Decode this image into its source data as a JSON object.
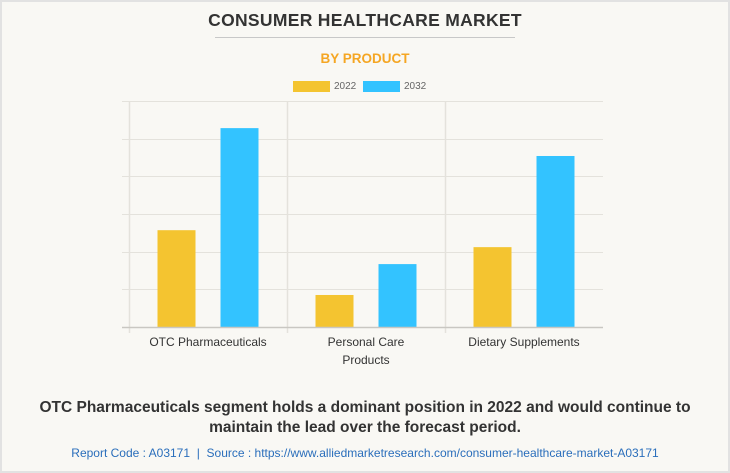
{
  "header": {
    "title": "CONSUMER HEALTHCARE MARKET",
    "subtitle": "BY PRODUCT"
  },
  "colors": {
    "series_2022": "#f4c430",
    "series_2032": "#33c3ff",
    "subtitle": "#f5a623",
    "footer_link": "#2a6ebb"
  },
  "chart_data": {
    "type": "bar",
    "title": "CONSUMER HEALTHCARE MARKET",
    "subtitle": "BY PRODUCT",
    "xlabel": "",
    "ylabel": "",
    "y_tick_labels_visible": false,
    "y_units": "relative (gridline intervals; no numeric axis shown)",
    "ylim": [
      0,
      6
    ],
    "grid": true,
    "legend_position": "top-center",
    "categories": [
      "OTC Pharmaceuticals",
      "Personal Care Products",
      "Dietary Supplements"
    ],
    "category_label_lines": [
      [
        "OTC Pharmaceuticals"
      ],
      [
        "Personal Care",
        "Products"
      ],
      [
        "Dietary Supplements"
      ]
    ],
    "series": [
      {
        "name": "2022",
        "color": "#f4c430",
        "values": [
          2.57,
          0.85,
          2.12
        ]
      },
      {
        "name": "2032",
        "color": "#33c3ff",
        "values": [
          5.28,
          1.67,
          4.54
        ]
      }
    ]
  },
  "caption": {
    "line1": "OTC Pharmaceuticals segment holds a dominant position in 2022 and would continue to",
    "line2": "maintain the lead over the forecast period."
  },
  "footer": {
    "report_code": "Report Code : A03171",
    "separator": "|",
    "source": "Source : https://www.alliedmarketresearch.com/consumer-healthcare-market-A03171"
  }
}
